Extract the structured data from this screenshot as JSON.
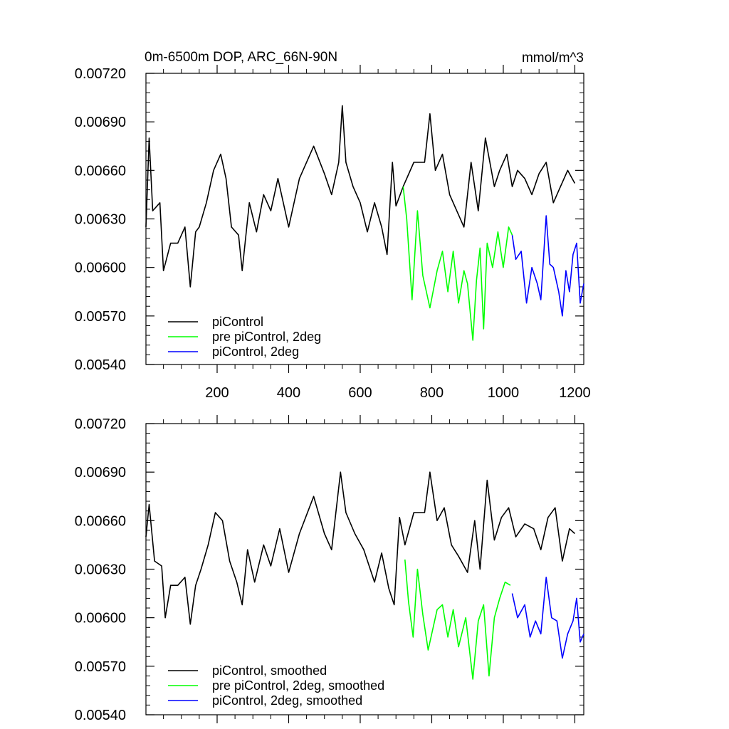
{
  "chart_data": [
    {
      "type": "line",
      "title": "0m-6500m DOP, ARC_66N-90N",
      "units": "mmol/m^3",
      "xlim": [
        1,
        1225
      ],
      "ylim": [
        0.0054,
        0.0072
      ],
      "xticks": [
        200,
        400,
        600,
        800,
        1000,
        1200
      ],
      "xtick_labels": [
        "200",
        "400",
        "600",
        "800",
        "1000",
        "1200"
      ],
      "yticks": [
        0.0054,
        0.0057,
        0.006,
        0.0063,
        0.0066,
        0.0069,
        0.0072
      ],
      "ytick_labels": [
        "0.00540",
        "0.00570",
        "0.00600",
        "0.00630",
        "0.00660",
        "0.00690",
        "0.00720"
      ],
      "legend_position": "bottom-left",
      "series": [
        {
          "name": "piControl",
          "color": "#000000",
          "x": [
            1,
            10,
            20,
            40,
            50,
            70,
            90,
            110,
            125,
            140,
            150,
            170,
            190,
            210,
            225,
            240,
            260,
            270,
            290,
            310,
            330,
            350,
            370,
            400,
            430,
            470,
            500,
            520,
            540,
            550,
            560,
            580,
            600,
            620,
            640,
            660,
            675,
            690,
            700,
            720,
            750,
            780,
            795,
            810,
            830,
            850,
            870,
            890,
            910,
            930,
            950,
            975,
            990,
            1010,
            1025,
            1040,
            1060,
            1080,
            1100,
            1120,
            1140,
            1160,
            1180,
            1200
          ],
          "y": [
            0.00625,
            0.0068,
            0.00635,
            0.0064,
            0.00598,
            0.00615,
            0.00615,
            0.00625,
            0.00588,
            0.00622,
            0.00625,
            0.0064,
            0.0066,
            0.0067,
            0.00655,
            0.00625,
            0.0062,
            0.00598,
            0.0064,
            0.00622,
            0.00645,
            0.00635,
            0.00655,
            0.00625,
            0.00655,
            0.00675,
            0.00658,
            0.00645,
            0.00665,
            0.007,
            0.00665,
            0.0065,
            0.0064,
            0.00622,
            0.0064,
            0.00625,
            0.00608,
            0.00665,
            0.00638,
            0.0065,
            0.00665,
            0.00665,
            0.00695,
            0.0066,
            0.0067,
            0.00645,
            0.00635,
            0.00625,
            0.00665,
            0.00635,
            0.0068,
            0.0065,
            0.0066,
            0.0067,
            0.0065,
            0.0066,
            0.00655,
            0.00645,
            0.00658,
            0.00665,
            0.0064,
            0.0065,
            0.0066,
            0.00652
          ]
        },
        {
          "name": "pre piControl, 2deg",
          "color": "#00ff00",
          "x": [
            720,
            730,
            745,
            760,
            775,
            795,
            815,
            830,
            845,
            860,
            875,
            890,
            900,
            915,
            925,
            935,
            945,
            955,
            970,
            985,
            1000,
            1015,
            1025
          ],
          "y": [
            0.0065,
            0.0063,
            0.0058,
            0.00635,
            0.00595,
            0.00575,
            0.00598,
            0.0061,
            0.00585,
            0.0061,
            0.00578,
            0.00598,
            0.0059,
            0.00555,
            0.00592,
            0.00612,
            0.00562,
            0.00615,
            0.006,
            0.00622,
            0.006,
            0.00625,
            0.0062
          ]
        },
        {
          "name": "piControl, 2deg",
          "color": "#0000ff",
          "x": [
            1025,
            1035,
            1050,
            1065,
            1080,
            1095,
            1105,
            1120,
            1130,
            1140,
            1155,
            1165,
            1175,
            1185,
            1195,
            1205,
            1215,
            1225
          ],
          "y": [
            0.0062,
            0.00605,
            0.0061,
            0.00578,
            0.006,
            0.0059,
            0.0058,
            0.00632,
            0.00602,
            0.006,
            0.00585,
            0.0057,
            0.00598,
            0.00585,
            0.00608,
            0.00615,
            0.00578,
            0.0059
          ]
        }
      ],
      "legend": [
        {
          "label": "piControl",
          "color": "#000000"
        },
        {
          "label": "pre piControl, 2deg",
          "color": "#00ff00"
        },
        {
          "label": "piControl, 2deg",
          "color": "#0000ff"
        }
      ]
    },
    {
      "type": "line",
      "xlim": [
        1,
        1225
      ],
      "ylim": [
        0.0054,
        0.0072
      ],
      "xticks": [
        200,
        400,
        600,
        800,
        1000,
        1200
      ],
      "yticks": [
        0.0054,
        0.0057,
        0.006,
        0.0063,
        0.0066,
        0.0069,
        0.0072
      ],
      "ytick_labels": [
        "0.00540",
        "0.00570",
        "0.00600",
        "0.00630",
        "0.00660",
        "0.00690",
        "0.00720"
      ],
      "legend_position": "bottom-left",
      "series": [
        {
          "name": "piControl, smoothed",
          "color": "#000000",
          "x": [
            1,
            10,
            25,
            45,
            55,
            70,
            90,
            110,
            125,
            140,
            155,
            175,
            195,
            215,
            235,
            255,
            270,
            285,
            305,
            330,
            350,
            375,
            400,
            430,
            470,
            500,
            520,
            545,
            560,
            585,
            610,
            640,
            660,
            680,
            695,
            710,
            725,
            750,
            780,
            795,
            815,
            835,
            855,
            875,
            900,
            920,
            935,
            955,
            975,
            995,
            1015,
            1035,
            1060,
            1085,
            1105,
            1125,
            1145,
            1165,
            1185,
            1200
          ],
          "y": [
            0.0065,
            0.0067,
            0.00635,
            0.00632,
            0.006,
            0.0062,
            0.0062,
            0.00625,
            0.00596,
            0.0062,
            0.0063,
            0.00645,
            0.00665,
            0.0066,
            0.00635,
            0.00622,
            0.00608,
            0.00642,
            0.00622,
            0.00645,
            0.00632,
            0.00655,
            0.00628,
            0.00652,
            0.00675,
            0.00652,
            0.00642,
            0.0069,
            0.00665,
            0.00652,
            0.00642,
            0.00622,
            0.0064,
            0.00618,
            0.00608,
            0.00662,
            0.00645,
            0.00665,
            0.00665,
            0.0069,
            0.0066,
            0.00668,
            0.00645,
            0.00638,
            0.00628,
            0.0066,
            0.0063,
            0.00685,
            0.00648,
            0.00662,
            0.00668,
            0.0065,
            0.00658,
            0.00655,
            0.00642,
            0.00662,
            0.00668,
            0.00635,
            0.00655,
            0.00652
          ]
        },
        {
          "name": "pre piControl, 2deg, smoothed",
          "color": "#00ff00",
          "x": [
            725,
            735,
            748,
            760,
            775,
            790,
            815,
            830,
            845,
            860,
            875,
            895,
            915,
            930,
            945,
            960,
            975,
            990,
            1005,
            1020
          ],
          "y": [
            0.00636,
            0.0061,
            0.00588,
            0.0063,
            0.00602,
            0.0058,
            0.00605,
            0.00608,
            0.00588,
            0.00605,
            0.00582,
            0.006,
            0.00562,
            0.00598,
            0.00608,
            0.00564,
            0.006,
            0.00612,
            0.00622,
            0.0062
          ]
        },
        {
          "name": "piControl, 2deg, smoothed",
          "color": "#0000ff",
          "x": [
            1025,
            1040,
            1060,
            1075,
            1090,
            1105,
            1120,
            1135,
            1150,
            1165,
            1180,
            1195,
            1205,
            1215,
            1225
          ],
          "y": [
            0.00615,
            0.006,
            0.00608,
            0.00588,
            0.00598,
            0.0059,
            0.00625,
            0.006,
            0.00598,
            0.00575,
            0.0059,
            0.00598,
            0.00612,
            0.00585,
            0.0059
          ]
        }
      ],
      "legend": [
        {
          "label": "piControl, smoothed",
          "color": "#000000"
        },
        {
          "label": "pre piControl, 2deg, smoothed",
          "color": "#00ff00"
        },
        {
          "label": "piControl, 2deg, smoothed",
          "color": "#0000ff"
        }
      ]
    }
  ]
}
